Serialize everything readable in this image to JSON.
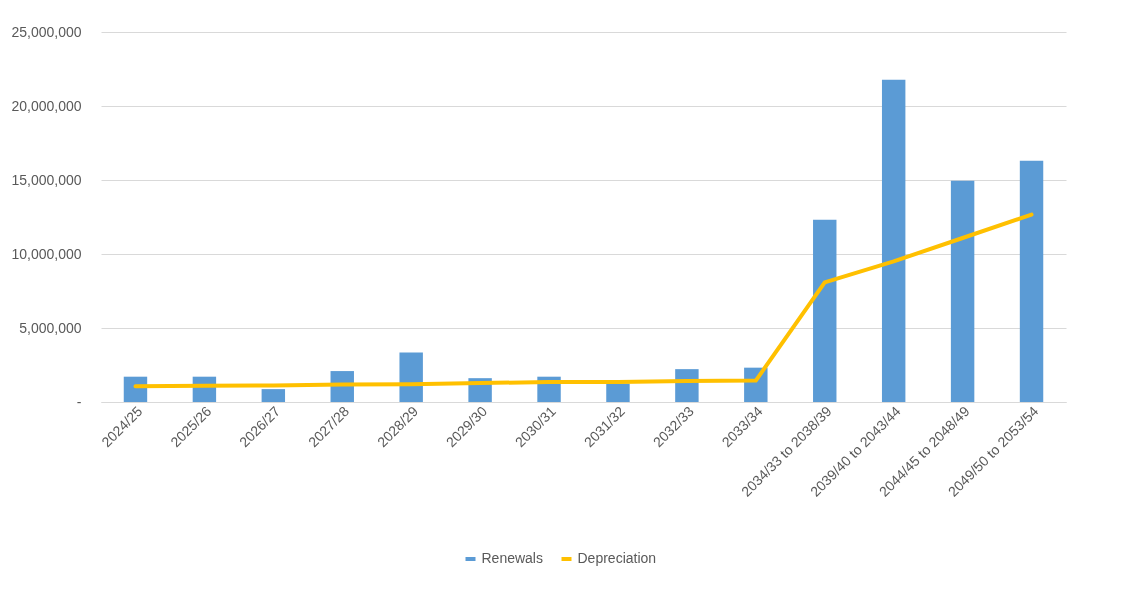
{
  "chart_data": {
    "type": "bar",
    "categories": [
      "2024/25",
      "2025/26",
      "2026/27",
      "2027/28",
      "2028/29",
      "2029/30",
      "2030/31",
      "2031/32",
      "2032/33",
      "2033/34",
      "2034/33 to 2038/39",
      "2039/40 to 2043/44",
      "2044/45 to 2048/49",
      "2049/50 to 2053/54"
    ],
    "series": [
      {
        "name": "Renewals",
        "color": "#5b9bd5",
        "values": [
          1710000,
          1710000,
          870000,
          2090000,
          3340000,
          1610000,
          1710000,
          1250000,
          2220000,
          2320000,
          12320000,
          21780000,
          14950000,
          16300000
        ]
      },
      {
        "name": "Depreciation",
        "type": "line",
        "color": "#ffc000",
        "values": [
          1060000,
          1100000,
          1120000,
          1180000,
          1200000,
          1280000,
          1350000,
          1350000,
          1420000,
          1450000,
          8080000,
          9500000,
          11080000,
          12660000
        ]
      }
    ],
    "ylim": [
      0,
      25000000
    ],
    "yticks": [
      {
        "value": 0,
        "label": "-"
      },
      {
        "value": 5000000,
        "label": "5,000,000"
      },
      {
        "value": 10000000,
        "label": "10,000,000"
      },
      {
        "value": 15000000,
        "label": "15,000,000"
      },
      {
        "value": 20000000,
        "label": "20,000,000"
      },
      {
        "value": 25000000,
        "label": "25,000,000"
      }
    ],
    "grid": "y",
    "legend": "bottom"
  }
}
